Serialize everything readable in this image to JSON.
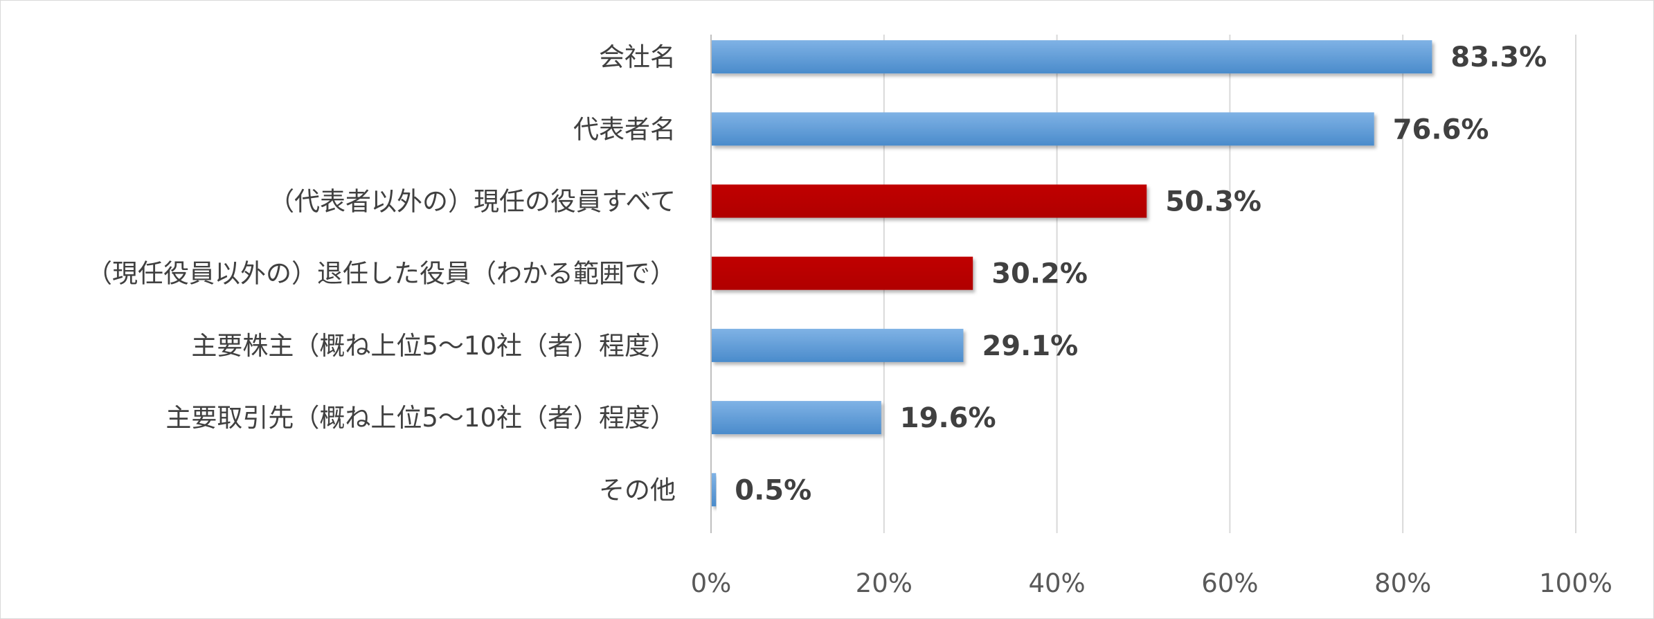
{
  "chart_data": {
    "type": "bar",
    "orientation": "horizontal",
    "title": "",
    "xlabel": "",
    "ylabel": "",
    "xlim": [
      0,
      100
    ],
    "x_ticks": [
      "0%",
      "20%",
      "40%",
      "60%",
      "80%",
      "100%"
    ],
    "grid": true,
    "legend": "none",
    "categories": [
      "会社名",
      "代表者名",
      "（代表者以外の）現任の役員すべて",
      "（現任役員以外の）退任した役員（わかる範囲で）",
      "主要株主（概ね上位5～10社（者）程度）",
      "主要取引先（概ね上位5～10社（者）程度）",
      "その他"
    ],
    "values": [
      83.3,
      76.6,
      50.3,
      30.2,
      29.1,
      19.6,
      0.5
    ],
    "value_labels": [
      "83.3%",
      "76.6%",
      "50.3%",
      "30.2%",
      "29.1%",
      "19.6%",
      "0.5%"
    ],
    "bar_colors": [
      "#5b9bd5",
      "#5b9bd5",
      "#c00000",
      "#c00000",
      "#5b9bd5",
      "#5b9bd5",
      "#5b9bd5"
    ],
    "colors": {
      "blue": "#5b9bd5",
      "blue_light": "#7fb2e5",
      "red": "#c00000",
      "text": "#404040",
      "grid": "#d9d9d9"
    }
  }
}
